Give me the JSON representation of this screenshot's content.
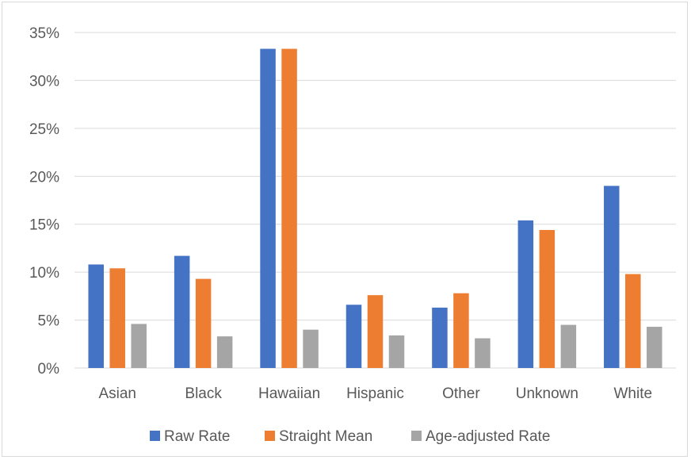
{
  "chart_data": {
    "type": "bar",
    "categories": [
      "Asian",
      "Black",
      "Hawaiian",
      "Hispanic",
      "Other",
      "Unknown",
      "White"
    ],
    "series": [
      {
        "name": "Raw Rate",
        "color": "#4472c4",
        "values": [
          10.8,
          11.7,
          33.3,
          6.6,
          6.3,
          15.4,
          19.0
        ]
      },
      {
        "name": "Straight Mean",
        "color": "#ed7d31",
        "values": [
          10.4,
          9.3,
          33.3,
          7.6,
          7.8,
          14.4,
          9.8
        ]
      },
      {
        "name": "Age-adjusted Rate",
        "color": "#a5a5a5",
        "values": [
          4.6,
          3.3,
          4.0,
          3.4,
          3.1,
          4.5,
          4.3
        ]
      }
    ],
    "y_ticks": [
      "0%",
      "5%",
      "10%",
      "15%",
      "20%",
      "25%",
      "30%",
      "35%"
    ],
    "ylim": [
      0,
      35
    ],
    "y_unit": "%",
    "grid": true,
    "gridline_color": "#d9d9d9",
    "legend_position": "bottom"
  }
}
